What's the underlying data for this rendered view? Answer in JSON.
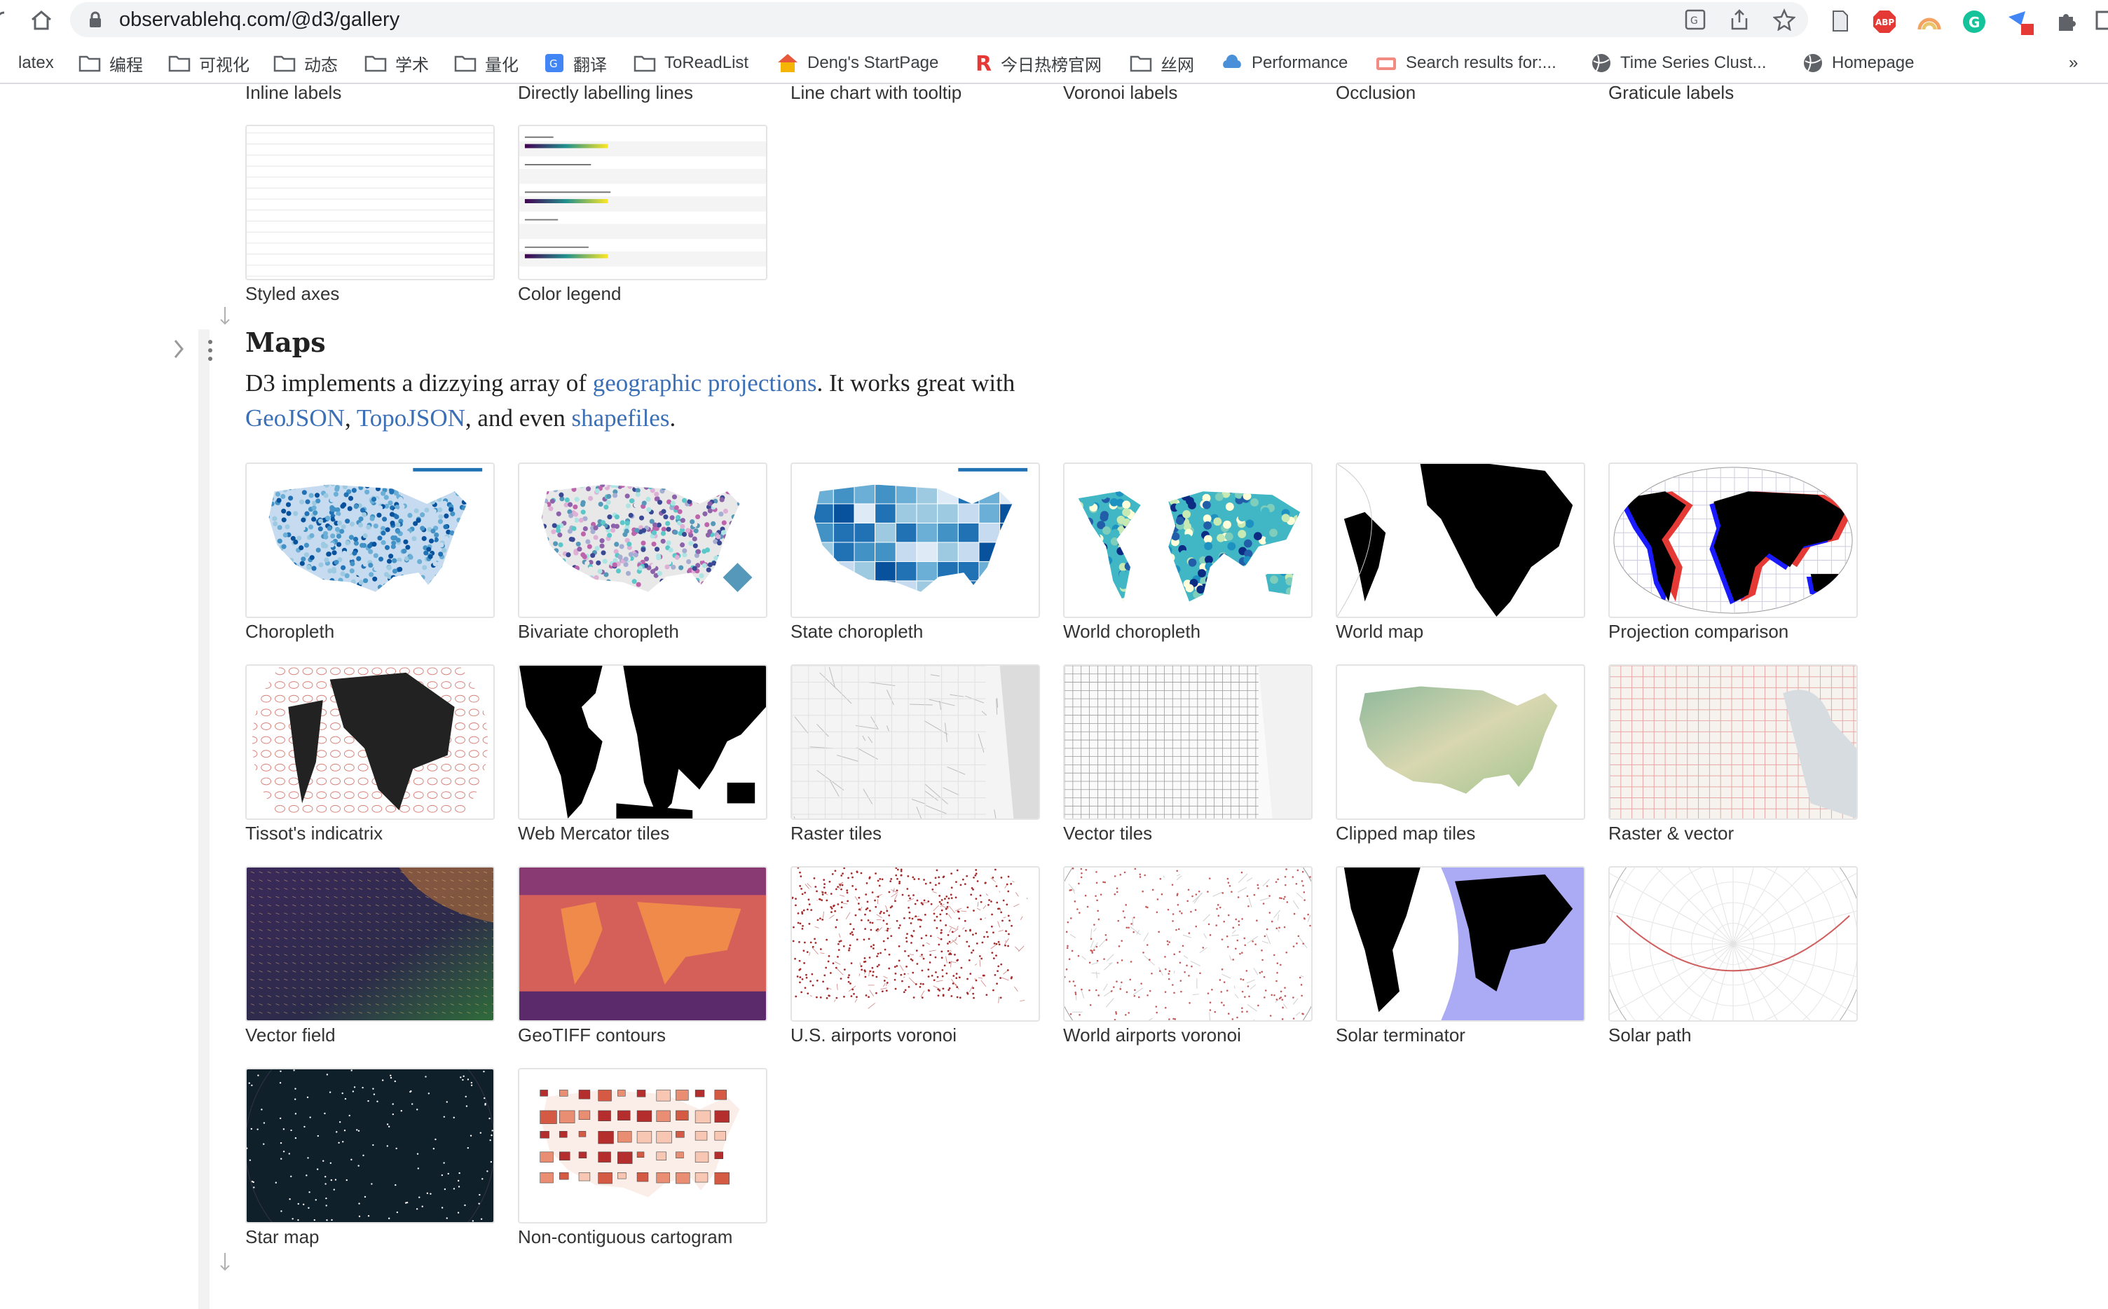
{
  "browser": {
    "url": "observablehq.com/@d3/gallery",
    "bookmarks": [
      {
        "label": "latex",
        "icon": "folder-icon"
      },
      {
        "label": "编程",
        "icon": "folder-icon"
      },
      {
        "label": "可视化",
        "icon": "folder-icon"
      },
      {
        "label": "动态",
        "icon": "folder-icon"
      },
      {
        "label": "学术",
        "icon": "folder-icon"
      },
      {
        "label": "量化",
        "icon": "folder-icon"
      },
      {
        "label": "翻译",
        "icon": "translate-icon"
      },
      {
        "label": "ToReadList",
        "icon": "folder-icon"
      },
      {
        "label": "Deng's StartPage",
        "icon": "house-icon"
      },
      {
        "label": "今日热榜官网",
        "icon": "r-logo-icon"
      },
      {
        "label": "丝网",
        "icon": "folder-icon"
      },
      {
        "label": "Performance",
        "icon": "cloud-icon"
      },
      {
        "label": "Search results for:...",
        "icon": "site-icon"
      },
      {
        "label": "Time Series Clust...",
        "icon": "globe-icon"
      },
      {
        "label": "Homepage",
        "icon": "globe-icon"
      }
    ],
    "more": "»"
  },
  "top_partial_labels": [
    "Inline labels",
    "Directly labelling lines",
    "Line chart with tooltip",
    "Voronoi labels",
    "Occlusion",
    "Graticule labels"
  ],
  "charts_tail": [
    {
      "label": "Styled axes",
      "thumb": "axes"
    },
    {
      "label": "Color legend",
      "thumb": "legend"
    }
  ],
  "maps": {
    "heading": "Maps",
    "desc": {
      "t1": "D3 implements a dizzying array of ",
      "l1": "geographic projections",
      "t2": ". It works great with",
      "l2": "GeoJSON",
      "t3": ", ",
      "l3": "TopoJSON",
      "t4": ", and even ",
      "l4": "shapefiles",
      "t5": "."
    },
    "items": [
      {
        "label": "Choropleth",
        "thumb": "choropleth"
      },
      {
        "label": "Bivariate choropleth",
        "thumb": "bivariate"
      },
      {
        "label": "State choropleth",
        "thumb": "state"
      },
      {
        "label": "World choropleth",
        "thumb": "worldchoro"
      },
      {
        "label": "World map",
        "thumb": "worldmap"
      },
      {
        "label": "Projection comparison",
        "thumb": "projcomp"
      },
      {
        "label": "Tissot's indicatrix",
        "thumb": "tissot"
      },
      {
        "label": "Web Mercator tiles",
        "thumb": "mercator"
      },
      {
        "label": "Raster tiles",
        "thumb": "raster"
      },
      {
        "label": "Vector tiles",
        "thumb": "vector"
      },
      {
        "label": "Clipped map tiles",
        "thumb": "clipped"
      },
      {
        "label": "Raster & vector",
        "thumb": "rastervec"
      },
      {
        "label": "Vector field",
        "thumb": "vectorfield"
      },
      {
        "label": "GeoTIFF contours",
        "thumb": "geotiff"
      },
      {
        "label": "U.S. airports voronoi",
        "thumb": "usairports"
      },
      {
        "label": "World airports voronoi",
        "thumb": "worldairports"
      },
      {
        "label": "Solar terminator",
        "thumb": "solar"
      },
      {
        "label": "Solar path",
        "thumb": "solarpath"
      },
      {
        "label": "Star map",
        "thumb": "starmap"
      },
      {
        "label": "Non-contiguous cartogram",
        "thumb": "cartogram"
      }
    ]
  },
  "colors": {
    "link": "#3b6fb6",
    "chrome_bg": "#f1f3f4",
    "border": "#e4e4e4"
  }
}
